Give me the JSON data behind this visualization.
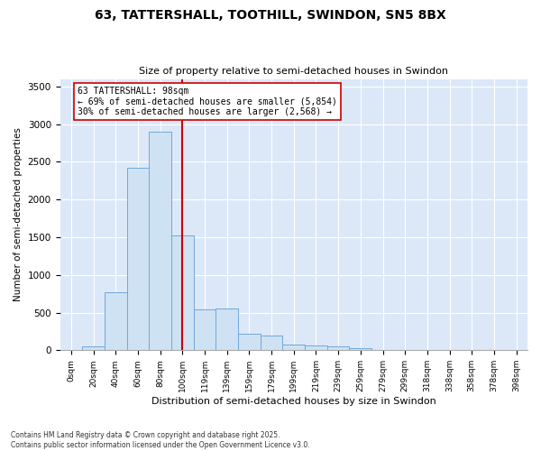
{
  "title": "63, TATTERSHALL, TOOTHILL, SWINDON, SN5 8BX",
  "subtitle": "Size of property relative to semi-detached houses in Swindon",
  "xlabel": "Distribution of semi-detached houses by size in Swindon",
  "ylabel": "Number of semi-detached properties",
  "bin_labels": [
    "0sqm",
    "20sqm",
    "40sqm",
    "60sqm",
    "80sqm",
    "100sqm",
    "119sqm",
    "139sqm",
    "159sqm",
    "179sqm",
    "199sqm",
    "219sqm",
    "239sqm",
    "259sqm",
    "279sqm",
    "299sqm",
    "318sqm",
    "338sqm",
    "358sqm",
    "378sqm",
    "398sqm"
  ],
  "bar_values": [
    10,
    55,
    775,
    2420,
    2900,
    1520,
    545,
    550,
    215,
    200,
    80,
    65,
    50,
    30,
    0,
    5,
    0,
    0,
    0,
    0,
    0
  ],
  "bar_color": "#cfe2f3",
  "bar_edge_color": "#6fa8dc",
  "property_label": "63 TATTERSHALL: 98sqm",
  "pct_smaller": 69,
  "count_smaller": 5854,
  "pct_larger": 30,
  "count_larger": 2568,
  "vline_x_index": 5.0,
  "annotation_box_color": "#ffffff",
  "annotation_box_edge": "#cc0000",
  "vline_color": "#cc0000",
  "background_color": "#dce8f8",
  "ylim": [
    0,
    3600
  ],
  "yticks": [
    0,
    500,
    1000,
    1500,
    2000,
    2500,
    3000,
    3500
  ],
  "footnote": "Contains HM Land Registry data © Crown copyright and database right 2025.\nContains public sector information licensed under the Open Government Licence v3.0.",
  "title_fontsize": 10,
  "subtitle_fontsize": 8,
  "xlabel_fontsize": 8,
  "ylabel_fontsize": 7.5
}
